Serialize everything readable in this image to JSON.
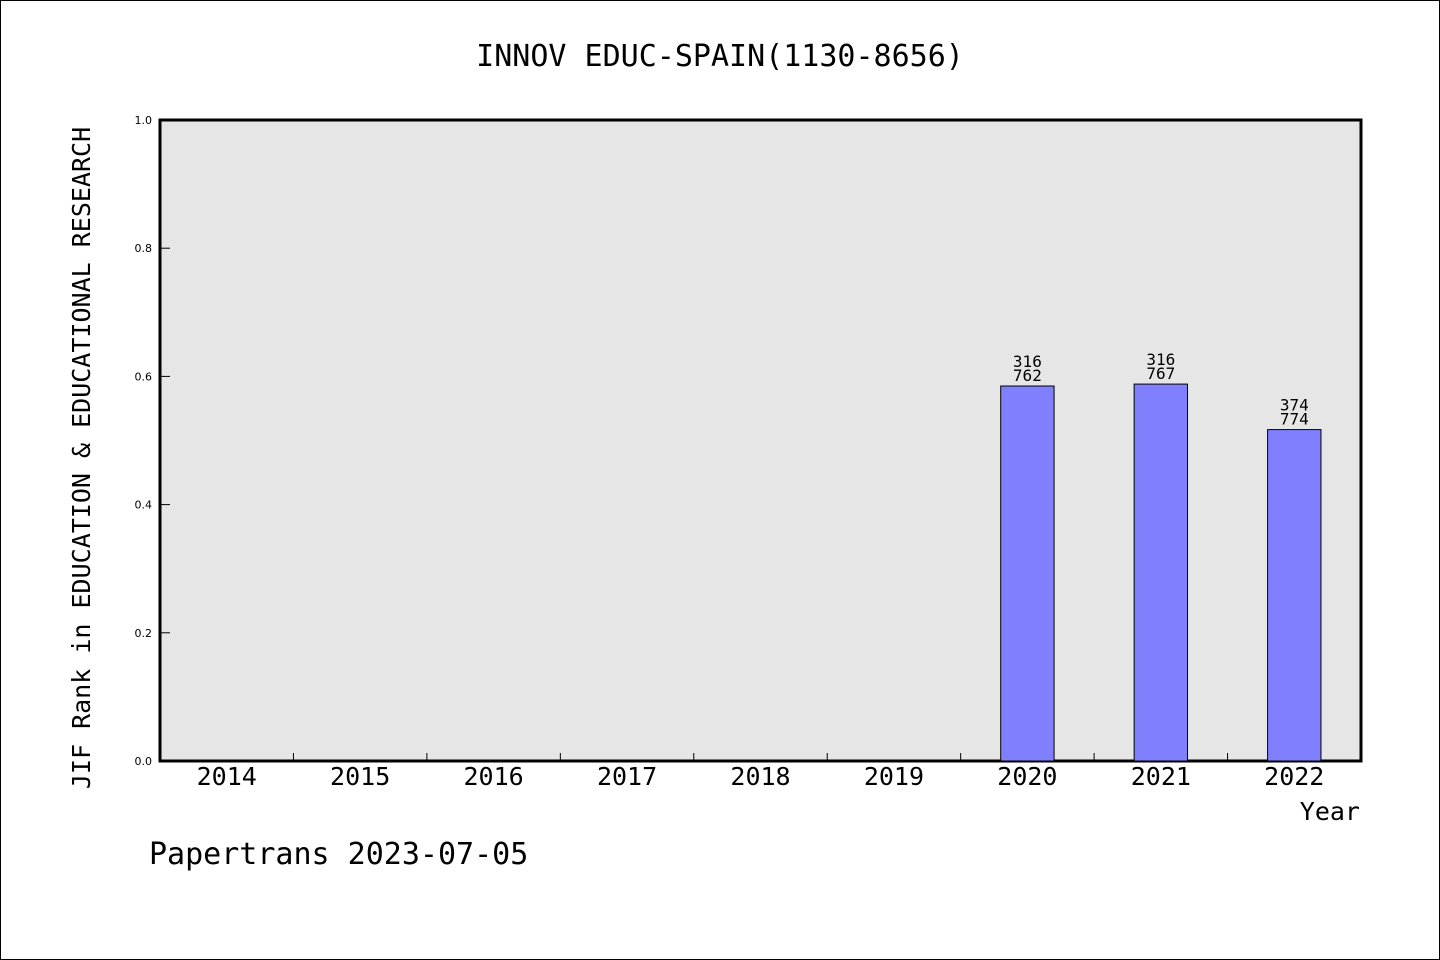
{
  "chart_data": {
    "type": "bar",
    "title": "INNOV EDUC-SPAIN(1130-8656)",
    "xlabel": "Year",
    "ylabel": "JIF Rank in EDUCATION & EDUCATIONAL RESEARCH",
    "categories": [
      "2014",
      "2015",
      "2016",
      "2017",
      "2018",
      "2019",
      "2020",
      "2021",
      "2022"
    ],
    "values": [
      null,
      null,
      null,
      null,
      null,
      null,
      0.585,
      0.588,
      0.517
    ],
    "bar_labels": [
      null,
      null,
      null,
      null,
      null,
      null,
      {
        "rank": "316",
        "total": "762"
      },
      {
        "rank": "316",
        "total": "767"
      },
      {
        "rank": "374",
        "total": "774"
      }
    ],
    "ylim": [
      0.0,
      1.0
    ],
    "yticks": [
      "0.0",
      "0.2",
      "0.4",
      "0.6",
      "0.8",
      "1.0"
    ],
    "grid": false,
    "colors": {
      "plot_background": "#e6e6e6",
      "bar_fill": "#8080ff",
      "bar_edge": "#000000",
      "axis": "#000000"
    }
  },
  "footer": "Papertrans 2023-07-05"
}
